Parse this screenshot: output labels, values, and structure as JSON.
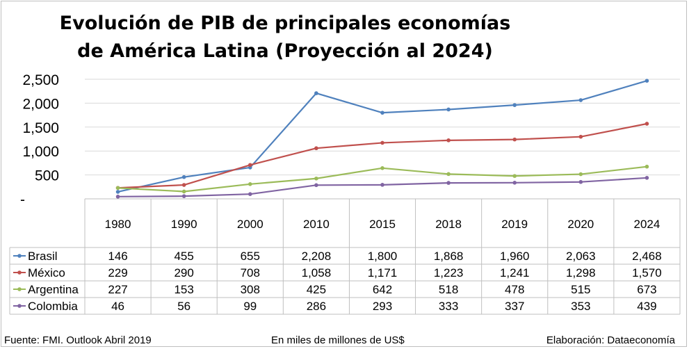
{
  "title": "Evolución de PIB de principales economías de América Latina (Proyección al 2024)",
  "footer": {
    "source": "Fuente: FMI. Outlook Abril 2019",
    "units": "En miles de millones de US$",
    "credit": "Elaboración: Dataeconomía"
  },
  "chart_data": {
    "type": "line",
    "title": "Evolución de PIB de principales economías de América Latina (Proyección al 2024)",
    "categories": [
      "1980",
      "1990",
      "2000",
      "2010",
      "2015",
      "2018",
      "2019",
      "2020",
      "2024"
    ],
    "y_ticks": [
      "-",
      "500",
      "1,000",
      "1,500",
      "2,000",
      "2,500"
    ],
    "ylim": [
      0,
      2500
    ],
    "grid": true,
    "legend": "data-table",
    "series": [
      {
        "name": "Brasil",
        "color": "#4f81bd",
        "values": [
          146,
          455,
          655,
          2208,
          1800,
          1868,
          1960,
          2063,
          2468
        ],
        "labels": [
          "146",
          "455",
          "655",
          "2,208",
          "1,800",
          "1,868",
          "1,960",
          "2,063",
          "2,468"
        ]
      },
      {
        "name": "México",
        "color": "#c0504d",
        "values": [
          229,
          290,
          708,
          1058,
          1171,
          1223,
          1241,
          1298,
          1570
        ],
        "labels": [
          "229",
          "290",
          "708",
          "1,058",
          "1,171",
          "1,223",
          "1,241",
          "1,298",
          "1,570"
        ]
      },
      {
        "name": "Argentina",
        "color": "#9bbb59",
        "values": [
          227,
          153,
          308,
          425,
          642,
          518,
          478,
          515,
          673
        ],
        "labels": [
          "227",
          "153",
          "308",
          "425",
          "642",
          "518",
          "478",
          "515",
          "673"
        ]
      },
      {
        "name": "Colombia",
        "color": "#8064a2",
        "values": [
          46,
          56,
          99,
          286,
          293,
          333,
          337,
          353,
          439
        ],
        "labels": [
          "46",
          "56",
          "99",
          "286",
          "293",
          "333",
          "337",
          "353",
          "439"
        ]
      }
    ]
  }
}
